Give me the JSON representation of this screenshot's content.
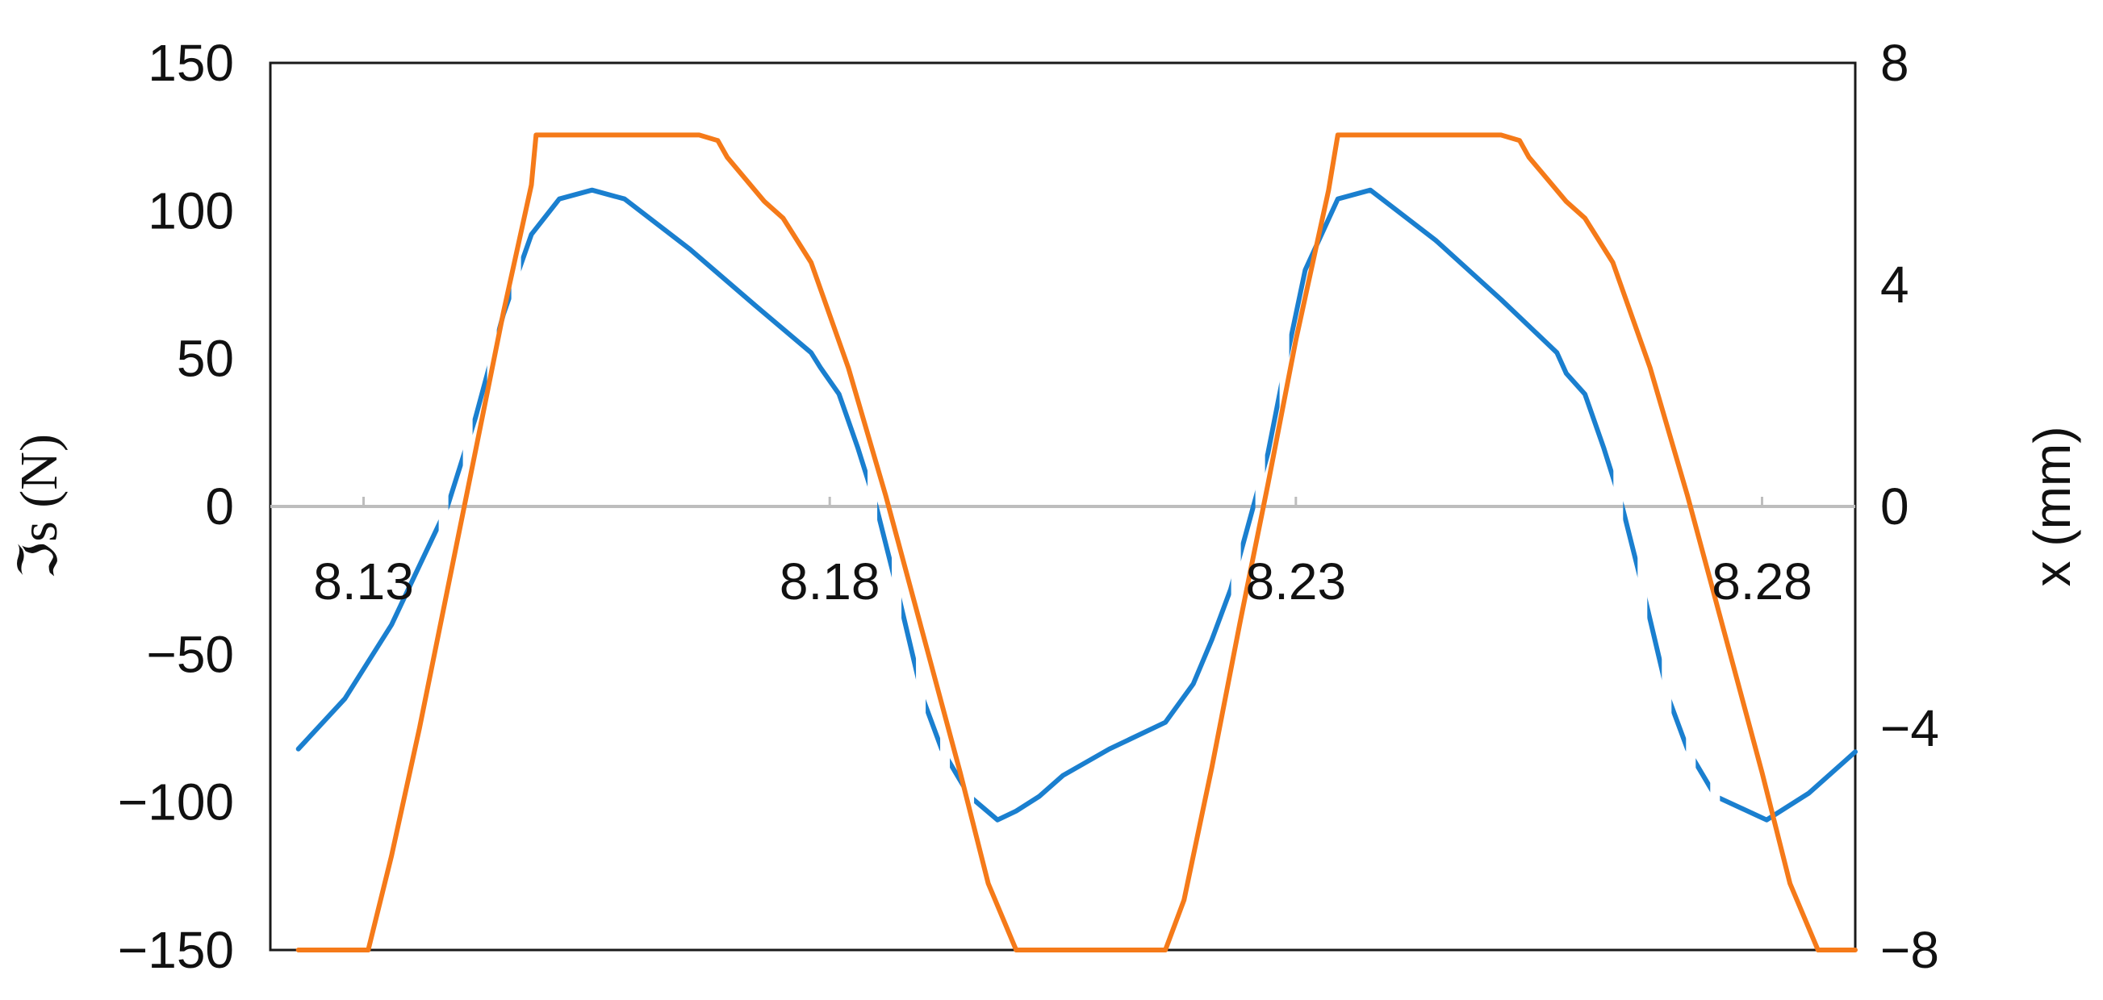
{
  "chart_data": {
    "type": "line",
    "title": "",
    "xlabel": "",
    "ylabel": "ℑs (N)",
    "y2label": "x (mm)",
    "xlim": [
      8.12,
      8.29
    ],
    "ylim": [
      -150,
      150
    ],
    "y2lim": [
      -8,
      8
    ],
    "x_ticks": [
      8.13,
      8.18,
      8.23,
      8.28
    ],
    "x_tick_labels": [
      "8.13",
      "8.18",
      "8.23",
      "8.28"
    ],
    "y_ticks": [
      -150,
      -100,
      -50,
      0,
      50,
      100,
      150
    ],
    "y_tick_labels": [
      "−150",
      "−100",
      "−50",
      "0",
      "50",
      "100",
      "150"
    ],
    "y2_ticks": [
      -8,
      -4,
      0,
      4,
      8
    ],
    "y2_tick_labels": [
      "−8",
      "−4",
      "0",
      "4",
      "8"
    ],
    "grid": false,
    "zero_line": true,
    "series": [
      {
        "axis": "left",
        "color": "#1a7fcf",
        "x": [
          8.123,
          8.128,
          8.133,
          8.136,
          8.139,
          8.142,
          8.145,
          8.148,
          8.151,
          8.1545,
          8.158,
          8.165,
          8.172,
          8.178,
          8.179,
          8.181,
          8.183,
          8.185,
          8.187,
          8.1885,
          8.19,
          8.192,
          8.195,
          8.198,
          8.2,
          8.2025,
          8.205,
          8.21,
          8.216,
          8.219,
          8.221,
          8.223,
          8.225,
          8.227,
          8.229,
          8.231,
          8.2345,
          8.238,
          8.245,
          8.252,
          8.258,
          8.259,
          8.261,
          8.263,
          8.265,
          8.267,
          8.2685,
          8.27,
          8.272,
          8.275,
          8.2805,
          8.285,
          8.29
        ],
        "y": [
          -82,
          -65,
          -40,
          -20,
          0,
          30,
          65,
          92,
          104,
          107,
          104,
          87,
          68,
          52,
          47,
          38,
          20,
          0,
          -25,
          -45,
          -65,
          -82,
          -98,
          -106,
          -103,
          -98,
          -91,
          -82,
          -73,
          -60,
          -45,
          -28,
          -5,
          18,
          50,
          80,
          104,
          107,
          90,
          70,
          52,
          45,
          38,
          20,
          0,
          -25,
          -45,
          -65,
          -82,
          -98,
          -106,
          -97,
          -83
        ],
        "dashed_segments": [
          [
            8.1365,
            8.1445
          ],
          [
            8.1825,
            8.1935
          ],
          [
            8.2215,
            8.229
          ],
          [
            8.2625,
            8.273
          ]
        ]
      },
      {
        "axis": "right",
        "color": "#f57a19",
        "x": [
          8.123,
          8.129,
          8.1305,
          8.133,
          8.136,
          8.139,
          8.142,
          8.145,
          8.148,
          8.1485,
          8.166,
          8.168,
          8.169,
          8.171,
          8.173,
          8.175,
          8.178,
          8.182,
          8.186,
          8.19,
          8.194,
          8.197,
          8.2,
          8.2,
          8.216,
          8.218,
          8.221,
          8.224,
          8.227,
          8.23,
          8.2335,
          8.2345,
          8.252,
          8.254,
          8.255,
          8.257,
          8.259,
          8.261,
          8.264,
          8.268,
          8.272,
          8.276,
          8.28,
          8.283,
          8.286,
          8.29
        ],
        "y": [
          -8,
          -8,
          -8,
          -6.3,
          -4,
          -1.5,
          1.0,
          3.5,
          5.8,
          6.7,
          6.7,
          6.6,
          6.3,
          5.9,
          5.5,
          5.2,
          4.4,
          2.5,
          0.2,
          -2.3,
          -4.8,
          -6.8,
          -8,
          -8,
          -8,
          -7.1,
          -4.7,
          -2.1,
          0.4,
          3.0,
          5.7,
          6.7,
          6.7,
          6.6,
          6.3,
          5.9,
          5.5,
          5.2,
          4.4,
          2.5,
          0.2,
          -2.3,
          -4.8,
          -6.8,
          -8,
          -8
        ]
      }
    ]
  }
}
